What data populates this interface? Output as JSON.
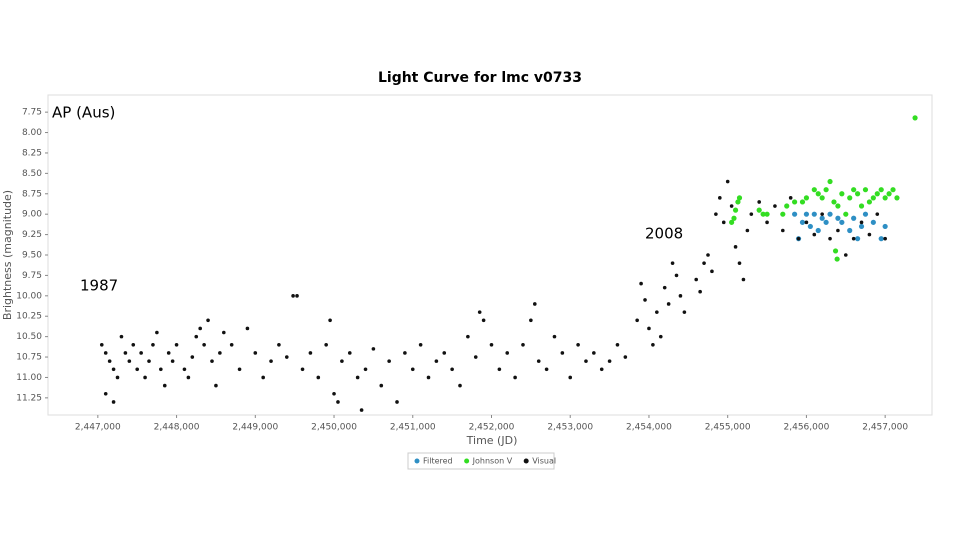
{
  "chart_data": {
    "type": "scatter",
    "title": "Light Curve for lmc v0733",
    "x_label": "Time (JD)",
    "y_label": "Brightness (magnitude)",
    "annotations": [
      "AP (Aus)",
      "1987",
      "2008"
    ],
    "xlim": [
      2446367,
      2457595
    ],
    "ylim": [
      7.54,
      11.46
    ],
    "invert_y": true,
    "legend_position": "bottom",
    "xticks": [
      {
        "value": 2447000,
        "label": "2,447,000"
      },
      {
        "value": 2448000,
        "label": "2,448,000"
      },
      {
        "value": 2449000,
        "label": "2,449,000"
      },
      {
        "value": 2450000,
        "label": "2,450,000"
      },
      {
        "value": 2451000,
        "label": "2,451,000"
      },
      {
        "value": 2452000,
        "label": "2,452,000"
      },
      {
        "value": 2453000,
        "label": "2,453,000"
      },
      {
        "value": 2454000,
        "label": "2,454,000"
      },
      {
        "value": 2455000,
        "label": "2,455,000"
      },
      {
        "value": 2456000,
        "label": "2,456,000"
      },
      {
        "value": 2457000,
        "label": "2,457,000"
      }
    ],
    "yticks": [
      7.75,
      {
        "value": 8,
        "label": "8.00"
      },
      8.25,
      {
        "value": 8.5,
        "label": "8.50"
      },
      8.75,
      {
        "value": 9,
        "label": "9.00"
      },
      9.25,
      {
        "value": 9.5,
        "label": "9.50"
      },
      9.75,
      {
        "value": 10,
        "label": "10.00"
      },
      10.25,
      {
        "value": 10.5,
        "label": "10.50"
      },
      10.75,
      {
        "value": 11,
        "label": "11.00"
      },
      11.25
    ],
    "series": [
      {
        "name": "Filtered",
        "color": "#2e8fc4",
        "x": [
          2455850,
          2455900,
          2455950,
          2456000,
          2456050,
          2456100,
          2456150,
          2456200,
          2456250,
          2456300,
          2456400,
          2456450,
          2456550,
          2456600,
          2456650,
          2456700,
          2456750,
          2456850,
          2456950,
          2457000
        ],
        "values": [
          9.0,
          9.3,
          9.1,
          9.0,
          9.15,
          9.0,
          9.2,
          9.05,
          9.1,
          9.0,
          9.05,
          9.1,
          9.2,
          9.05,
          9.3,
          9.15,
          9.0,
          9.1,
          9.3,
          9.15
        ]
      },
      {
        "name": "Johnson V",
        "color": "#33dd22",
        "x": [
          2455050,
          2455080,
          2455100,
          2455130,
          2455150,
          2455400,
          2455450,
          2455500,
          2455700,
          2455750,
          2455850,
          2455950,
          2456000,
          2456100,
          2456150,
          2456200,
          2456250,
          2456300,
          2456350,
          2456400,
          2456450,
          2456500,
          2456550,
          2456600,
          2456650,
          2456700,
          2456750,
          2456800,
          2456850,
          2456900,
          2456950,
          2457000,
          2457050,
          2457100,
          2457150,
          2456370,
          2456390,
          2457380
        ],
        "values": [
          9.1,
          9.05,
          8.95,
          8.85,
          8.8,
          8.95,
          9.0,
          9.0,
          9.0,
          8.9,
          8.85,
          8.85,
          8.8,
          8.7,
          8.75,
          8.8,
          8.7,
          8.6,
          8.85,
          8.9,
          8.75,
          9.0,
          8.8,
          8.7,
          8.75,
          8.9,
          8.7,
          8.85,
          8.8,
          8.75,
          8.7,
          8.8,
          8.75,
          8.7,
          8.8,
          9.45,
          9.55,
          7.82
        ]
      },
      {
        "name": "Visual",
        "color": "#111111",
        "x": [
          2447050,
          2447100,
          2447150,
          2447200,
          2447250,
          2447300,
          2447350,
          2447100,
          2447200,
          2447400,
          2447450,
          2447500,
          2447550,
          2447600,
          2447650,
          2447700,
          2447750,
          2447800,
          2447850,
          2447900,
          2447950,
          2448000,
          2448100,
          2448150,
          2448200,
          2448250,
          2448300,
          2448350,
          2448400,
          2448450,
          2448500,
          2448550,
          2448600,
          2448700,
          2448800,
          2448900,
          2449000,
          2449100,
          2449200,
          2449300,
          2449480,
          2449530,
          2449400,
          2449600,
          2449700,
          2449800,
          2449900,
          2449950,
          2450000,
          2450050,
          2450100,
          2450200,
          2450300,
          2450350,
          2450400,
          2450500,
          2450600,
          2450700,
          2450800,
          2450900,
          2451000,
          2451100,
          2451200,
          2451300,
          2451400,
          2451500,
          2451600,
          2451700,
          2451800,
          2451850,
          2451900,
          2452000,
          2452100,
          2452200,
          2452300,
          2452400,
          2452500,
          2452550,
          2452600,
          2452700,
          2452800,
          2452900,
          2453000,
          2453100,
          2453200,
          2453300,
          2453400,
          2453500,
          2453600,
          2453700,
          2453850,
          2453900,
          2453950,
          2454000,
          2454050,
          2454100,
          2454150,
          2454200,
          2454250,
          2454300,
          2454350,
          2454400,
          2454450,
          2454600,
          2454650,
          2454700,
          2454750,
          2454800,
          2454850,
          2454900,
          2454950,
          2455000,
          2455050,
          2455100,
          2455150,
          2455200,
          2455250,
          2455300,
          2455400,
          2455500,
          2455600,
          2455700,
          2455800,
          2455900,
          2456000,
          2456100,
          2456200,
          2456300,
          2456400,
          2456500,
          2456600,
          2456700,
          2456800,
          2456900,
          2457000
        ],
        "values": [
          10.6,
          10.7,
          10.8,
          10.9,
          11.0,
          10.5,
          10.7,
          11.2,
          11.3,
          10.8,
          10.6,
          10.9,
          10.7,
          11.0,
          10.8,
          10.6,
          10.45,
          10.9,
          11.1,
          10.7,
          10.8,
          10.6,
          10.9,
          11.0,
          10.75,
          10.5,
          10.4,
          10.6,
          10.3,
          10.8,
          11.1,
          10.7,
          10.45,
          10.6,
          10.9,
          10.4,
          10.7,
          11.0,
          10.8,
          10.6,
          10.0,
          10.0,
          10.75,
          10.9,
          10.7,
          11.0,
          10.6,
          10.3,
          11.2,
          11.3,
          10.8,
          10.7,
          11.0,
          11.4,
          10.9,
          10.65,
          11.1,
          10.8,
          11.3,
          10.7,
          10.9,
          10.6,
          11.0,
          10.8,
          10.7,
          10.9,
          11.1,
          10.5,
          10.75,
          10.2,
          10.3,
          10.6,
          10.9,
          10.7,
          11.0,
          10.6,
          10.3,
          10.1,
          10.8,
          10.9,
          10.5,
          10.7,
          11.0,
          10.6,
          10.8,
          10.7,
          10.9,
          10.8,
          10.6,
          10.75,
          10.3,
          9.85,
          10.05,
          10.4,
          10.6,
          10.2,
          10.5,
          9.9,
          10.1,
          9.6,
          9.75,
          10.0,
          10.2,
          9.8,
          9.95,
          9.6,
          9.5,
          9.7,
          9.0,
          8.8,
          9.1,
          8.6,
          8.9,
          9.4,
          9.6,
          9.8,
          9.2,
          9.0,
          8.85,
          9.1,
          8.9,
          9.2,
          8.8,
          9.3,
          9.1,
          9.25,
          9.0,
          9.3,
          9.2,
          9.5,
          9.3,
          9.1,
          9.25,
          9.0,
          9.3
        ]
      }
    ]
  }
}
